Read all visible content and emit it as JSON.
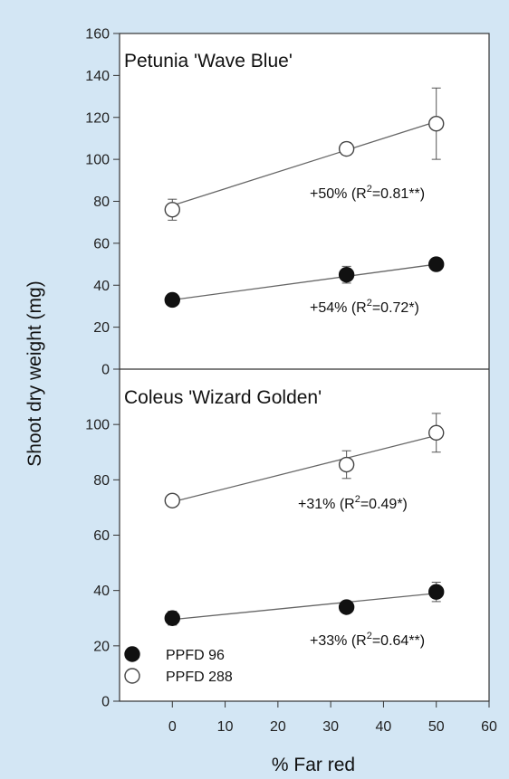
{
  "figure": {
    "background": "#d3e6f4",
    "plot_background": "#ffffff",
    "line_color": "#666666",
    "ylabel": "Shoot dry weight (mg)",
    "xlabel": "% Far red"
  },
  "legend": {
    "placement": "bottom-left of lower panel",
    "entries": [
      {
        "label": "PPFD 96",
        "marker": "filled-circle",
        "color": "#111111"
      },
      {
        "label": "PPFD 288",
        "marker": "open-circle",
        "color": "#ffffff"
      }
    ]
  },
  "chart_data": [
    {
      "type": "scatter",
      "title": "Petunia 'Wave Blue'",
      "xlim": [
        -10,
        60
      ],
      "ylim": [
        0,
        160
      ],
      "yticks": [
        0,
        20,
        40,
        60,
        80,
        100,
        120,
        140,
        160
      ],
      "series": [
        {
          "name": "PPFD 96",
          "marker": "filled",
          "x": [
            0,
            33,
            50
          ],
          "y": [
            33,
            45,
            50
          ],
          "err": [
            2,
            4,
            1.5
          ],
          "fit": {
            "x": [
              0,
              50
            ],
            "y": [
              33,
              50
            ]
          },
          "annotation": {
            "prefix": "+54% (R",
            "sup": "2",
            "suffix": "=0.72*)"
          }
        },
        {
          "name": "PPFD 288",
          "marker": "open",
          "x": [
            0,
            33,
            50
          ],
          "y": [
            76,
            105,
            117
          ],
          "err": [
            5,
            3,
            17
          ],
          "fit": {
            "x": [
              0,
              50
            ],
            "y": [
              78,
              118
            ]
          },
          "annotation": {
            "prefix": "+50% (R",
            "sup": "2",
            "suffix": "=0.81**)"
          }
        }
      ]
    },
    {
      "type": "scatter",
      "title": "Coleus 'Wizard Golden'",
      "xlim": [
        -10,
        60
      ],
      "ylim": [
        0,
        120
      ],
      "yticks": [
        0,
        20,
        40,
        60,
        80,
        100
      ],
      "xticks": [
        0,
        10,
        20,
        30,
        40,
        50,
        60
      ],
      "series": [
        {
          "name": "PPFD 96",
          "marker": "filled",
          "x": [
            0,
            33,
            50
          ],
          "y": [
            30,
            34,
            39.5
          ],
          "err": [
            2.5,
            1.5,
            3.5
          ],
          "fit": {
            "x": [
              0,
              50
            ],
            "y": [
              29.5,
              39
            ]
          },
          "annotation": {
            "prefix": "+33% (R",
            "sup": "2",
            "suffix": "=0.64**)"
          }
        },
        {
          "name": "PPFD 288",
          "marker": "open",
          "x": [
            0,
            33,
            50
          ],
          "y": [
            72.5,
            85.5,
            97
          ],
          "err": [
            2,
            5,
            7
          ]
        }
      ],
      "extra_fit": {
        "x": [
          0,
          50
        ],
        "y": [
          72,
          96
        ]
      },
      "extra_annotation": {
        "prefix": "+31% (R",
        "sup": "2",
        "suffix": "=0.49*)"
      }
    }
  ]
}
